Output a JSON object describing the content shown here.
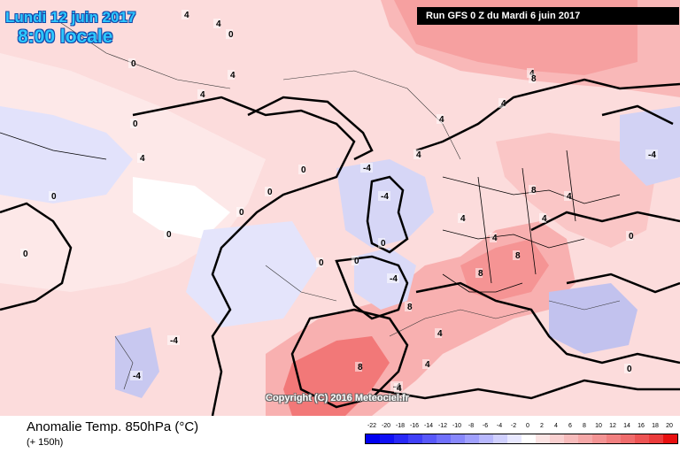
{
  "header": {
    "date_line": "Lundi 12 juin 2017",
    "time_line": "8:00 locale",
    "run_info": "Run GFS 0 Z du Mardi 6 juin 2017"
  },
  "map": {
    "copyright": "Copyright (C) 2016 Meteociel.fr",
    "contour_labels": [
      "0",
      "0",
      "0",
      "0",
      "0",
      "0",
      "0",
      "0",
      "0",
      "0",
      "0",
      "0",
      "4",
      "4",
      "4",
      "4",
      "4",
      "4",
      "4",
      "4",
      "4",
      "4",
      "4",
      "-4",
      "-4",
      "-4",
      "-4",
      "-4",
      "-4",
      "8",
      "8",
      "8",
      "8",
      "8",
      "4",
      "4",
      "-4",
      "0",
      "0",
      "8",
      "4",
      "4",
      "4"
    ],
    "colors": {
      "land_border": "#000000",
      "warm_anomaly_strong": "#f26b6b",
      "warm_anomaly": "#f9b0b0",
      "warm_anomaly_light": "#fcd6d6",
      "neutral": "#ffffff",
      "cold_anomaly_light": "#dcdcff",
      "cold_anomaly": "#b8b8f4"
    }
  },
  "footer": {
    "title": "Anomalie Temp. 850hPa (°C)",
    "subtitle": "(+ 150h)"
  },
  "legend": {
    "ticks": [
      "-22",
      "-20",
      "-18",
      "-16",
      "-14",
      "-12",
      "-10",
      "-8",
      "-6",
      "-4",
      "-2",
      "0",
      "2",
      "4",
      "6",
      "8",
      "10",
      "12",
      "14",
      "16",
      "18",
      "20"
    ],
    "colors": [
      "#0000f0",
      "#1010f4",
      "#2828f6",
      "#4040f8",
      "#5858fa",
      "#7070fb",
      "#8888fc",
      "#a0a0fd",
      "#b8b8fe",
      "#d0d0fe",
      "#e8e8ff",
      "#ffffff",
      "#fbe4e4",
      "#f9d0d0",
      "#f7bcbc",
      "#f5a8a8",
      "#f39494",
      "#f18080",
      "#ef6c6c",
      "#ed5454",
      "#eb3c3c",
      "#e81010"
    ]
  }
}
